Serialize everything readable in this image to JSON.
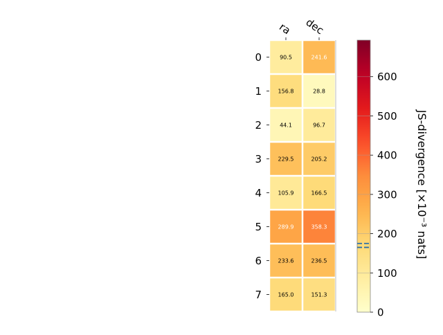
{
  "chart_data": {
    "type": "heatmap",
    "title": "",
    "xlabel": "",
    "ylabel": "",
    "columns": [
      "ra",
      "dec"
    ],
    "rows": [
      "0",
      "1",
      "2",
      "3",
      "4",
      "5",
      "6",
      "7"
    ],
    "values": [
      [
        90.5,
        241.6
      ],
      [
        156.8,
        28.8
      ],
      [
        44.1,
        96.7
      ],
      [
        229.5,
        205.2
      ],
      [
        105.9,
        166.5
      ],
      [
        289.9,
        358.3
      ],
      [
        233.6,
        236.5
      ],
      [
        165.0,
        151.3
      ]
    ],
    "cell_labels": [
      [
        "90.5",
        "241.6"
      ],
      [
        "156.8",
        "28.8"
      ],
      [
        "44.1",
        "96.7"
      ],
      [
        "229.5",
        "205.2"
      ],
      [
        "105.9",
        "166.5"
      ],
      [
        "289.9",
        "358.3"
      ],
      [
        "233.6",
        "236.5"
      ],
      [
        "165.0",
        "151.3"
      ]
    ],
    "colorbar": {
      "label": "JS-divergence [×10⁻³ nats]",
      "range": [
        0,
        693
      ],
      "ticks": [
        0,
        100,
        200,
        300,
        400,
        500,
        600
      ],
      "tick_labels": [
        "0",
        "100",
        "200",
        "300",
        "400",
        "500",
        "600"
      ],
      "colormap": "YlOrRd",
      "reference_lines": [
        165,
        175
      ]
    },
    "grid": false,
    "legend": "none"
  }
}
